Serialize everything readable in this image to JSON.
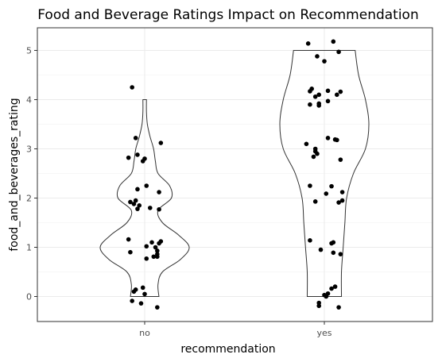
{
  "chart_data": {
    "type": "violin",
    "title": "Food and Beverage Ratings Impact on Recommendation",
    "xlabel": "recommendation",
    "ylabel": "food_and_beverages_rating",
    "categories": [
      "no",
      "yes"
    ],
    "ylim": [
      -0.5,
      5.5
    ],
    "yticks": [
      0,
      1,
      2,
      3,
      4,
      5
    ],
    "grid": true,
    "theme": "bw",
    "colors": {
      "violin_stroke": "#333333",
      "point": "#000000",
      "grid_major": "#ebebeb",
      "grid_minor": "#f5f5f5",
      "panel_border": "#333333"
    },
    "violins": [
      {
        "category": "no",
        "profile": [
          [
            0.0,
            0.16
          ],
          [
            0.25,
            0.15
          ],
          [
            0.5,
            0.2
          ],
          [
            0.75,
            0.4
          ],
          [
            1.0,
            0.5
          ],
          [
            1.25,
            0.38
          ],
          [
            1.5,
            0.2
          ],
          [
            1.75,
            0.15
          ],
          [
            2.0,
            0.3
          ],
          [
            2.25,
            0.28
          ],
          [
            2.5,
            0.15
          ],
          [
            2.75,
            0.12
          ],
          [
            3.0,
            0.1
          ],
          [
            3.25,
            0.06
          ],
          [
            3.5,
            0.03
          ],
          [
            3.75,
            0.02
          ],
          [
            4.0,
            0.02
          ]
        ]
      },
      {
        "category": "yes",
        "profile": [
          [
            0.0,
            0.1
          ],
          [
            0.5,
            0.1
          ],
          [
            1.0,
            0.11
          ],
          [
            1.5,
            0.12
          ],
          [
            2.0,
            0.13
          ],
          [
            2.5,
            0.17
          ],
          [
            3.0,
            0.24
          ],
          [
            3.5,
            0.26
          ],
          [
            4.0,
            0.24
          ],
          [
            4.5,
            0.2
          ],
          [
            5.0,
            0.18
          ]
        ]
      }
    ],
    "points": [
      {
        "group": "no",
        "x": -0.07,
        "y": 4.25
      },
      {
        "group": "no",
        "x": -0.05,
        "y": 3.22
      },
      {
        "group": "no",
        "x": 0.09,
        "y": 3.12
      },
      {
        "group": "no",
        "x": -0.04,
        "y": 2.88
      },
      {
        "group": "no",
        "x": 0.0,
        "y": 2.8
      },
      {
        "group": "no",
        "x": -0.01,
        "y": 2.75
      },
      {
        "group": "no",
        "x": -0.09,
        "y": 2.82
      },
      {
        "group": "no",
        "x": 0.01,
        "y": 2.25
      },
      {
        "group": "no",
        "x": -0.04,
        "y": 2.18
      },
      {
        "group": "no",
        "x": 0.08,
        "y": 2.12
      },
      {
        "group": "no",
        "x": -0.08,
        "y": 1.92
      },
      {
        "group": "no",
        "x": -0.06,
        "y": 1.88
      },
      {
        "group": "no",
        "x": -0.05,
        "y": 1.95
      },
      {
        "group": "no",
        "x": -0.03,
        "y": 1.85
      },
      {
        "group": "no",
        "x": -0.04,
        "y": 1.78
      },
      {
        "group": "no",
        "x": 0.03,
        "y": 1.8
      },
      {
        "group": "no",
        "x": 0.08,
        "y": 1.77
      },
      {
        "group": "no",
        "x": -0.09,
        "y": 1.16
      },
      {
        "group": "no",
        "x": 0.04,
        "y": 1.1
      },
      {
        "group": "no",
        "x": 0.09,
        "y": 1.12
      },
      {
        "group": "no",
        "x": 0.08,
        "y": 1.08
      },
      {
        "group": "no",
        "x": 0.01,
        "y": 1.02
      },
      {
        "group": "no",
        "x": 0.06,
        "y": 1.0
      },
      {
        "group": "no",
        "x": 0.07,
        "y": 0.93
      },
      {
        "group": "no",
        "x": -0.08,
        "y": 0.9
      },
      {
        "group": "no",
        "x": 0.07,
        "y": 0.86
      },
      {
        "group": "no",
        "x": 0.05,
        "y": 0.81
      },
      {
        "group": "no",
        "x": 0.07,
        "y": 0.81
      },
      {
        "group": "no",
        "x": 0.01,
        "y": 0.77
      },
      {
        "group": "no",
        "x": -0.01,
        "y": 0.18
      },
      {
        "group": "no",
        "x": -0.05,
        "y": 0.14
      },
      {
        "group": "no",
        "x": -0.06,
        "y": 0.1
      },
      {
        "group": "no",
        "x": 0.0,
        "y": 0.05
      },
      {
        "group": "no",
        "x": -0.07,
        "y": -0.09
      },
      {
        "group": "no",
        "x": -0.02,
        "y": -0.14
      },
      {
        "group": "no",
        "x": 0.07,
        "y": -0.22
      },
      {
        "group": "yes",
        "x": -0.09,
        "y": 5.14
      },
      {
        "group": "yes",
        "x": 0.05,
        "y": 5.18
      },
      {
        "group": "yes",
        "x": -0.04,
        "y": 4.88
      },
      {
        "group": "yes",
        "x": 0.08,
        "y": 4.97
      },
      {
        "group": "yes",
        "x": 0.0,
        "y": 4.78
      },
      {
        "group": "yes",
        "x": -0.07,
        "y": 4.22
      },
      {
        "group": "yes",
        "x": -0.08,
        "y": 4.17
      },
      {
        "group": "yes",
        "x": 0.02,
        "y": 4.18
      },
      {
        "group": "yes",
        "x": -0.03,
        "y": 4.1
      },
      {
        "group": "yes",
        "x": -0.05,
        "y": 4.06
      },
      {
        "group": "yes",
        "x": 0.09,
        "y": 4.16
      },
      {
        "group": "yes",
        "x": 0.07,
        "y": 4.1
      },
      {
        "group": "yes",
        "x": 0.02,
        "y": 3.97
      },
      {
        "group": "yes",
        "x": -0.03,
        "y": 3.92
      },
      {
        "group": "yes",
        "x": -0.08,
        "y": 3.9
      },
      {
        "group": "yes",
        "x": -0.03,
        "y": 3.88
      },
      {
        "group": "yes",
        "x": 0.02,
        "y": 3.22
      },
      {
        "group": "yes",
        "x": 0.06,
        "y": 3.19
      },
      {
        "group": "yes",
        "x": 0.07,
        "y": 3.18
      },
      {
        "group": "yes",
        "x": -0.1,
        "y": 3.1
      },
      {
        "group": "yes",
        "x": -0.05,
        "y": 3.0
      },
      {
        "group": "yes",
        "x": -0.05,
        "y": 2.95
      },
      {
        "group": "yes",
        "x": -0.04,
        "y": 2.9
      },
      {
        "group": "yes",
        "x": -0.06,
        "y": 2.84
      },
      {
        "group": "yes",
        "x": 0.09,
        "y": 2.78
      },
      {
        "group": "yes",
        "x": -0.08,
        "y": 2.25
      },
      {
        "group": "yes",
        "x": 0.04,
        "y": 2.24
      },
      {
        "group": "yes",
        "x": 0.1,
        "y": 2.12
      },
      {
        "group": "yes",
        "x": 0.01,
        "y": 2.09
      },
      {
        "group": "yes",
        "x": 0.1,
        "y": 1.95
      },
      {
        "group": "yes",
        "x": -0.05,
        "y": 1.93
      },
      {
        "group": "yes",
        "x": 0.08,
        "y": 1.91
      },
      {
        "group": "yes",
        "x": -0.08,
        "y": 1.14
      },
      {
        "group": "yes",
        "x": 0.05,
        "y": 1.1
      },
      {
        "group": "yes",
        "x": 0.04,
        "y": 1.08
      },
      {
        "group": "yes",
        "x": -0.02,
        "y": 0.95
      },
      {
        "group": "yes",
        "x": 0.05,
        "y": 0.89
      },
      {
        "group": "yes",
        "x": 0.09,
        "y": 0.86
      },
      {
        "group": "yes",
        "x": 0.06,
        "y": 0.2
      },
      {
        "group": "yes",
        "x": 0.04,
        "y": 0.16
      },
      {
        "group": "yes",
        "x": 0.02,
        "y": 0.06
      },
      {
        "group": "yes",
        "x": 0.0,
        "y": 0.03
      },
      {
        "group": "yes",
        "x": 0.01,
        "y": 0.0
      },
      {
        "group": "yes",
        "x": -0.03,
        "y": -0.13
      },
      {
        "group": "yes",
        "x": -0.03,
        "y": -0.19
      },
      {
        "group": "yes",
        "x": 0.08,
        "y": -0.22
      }
    ]
  }
}
